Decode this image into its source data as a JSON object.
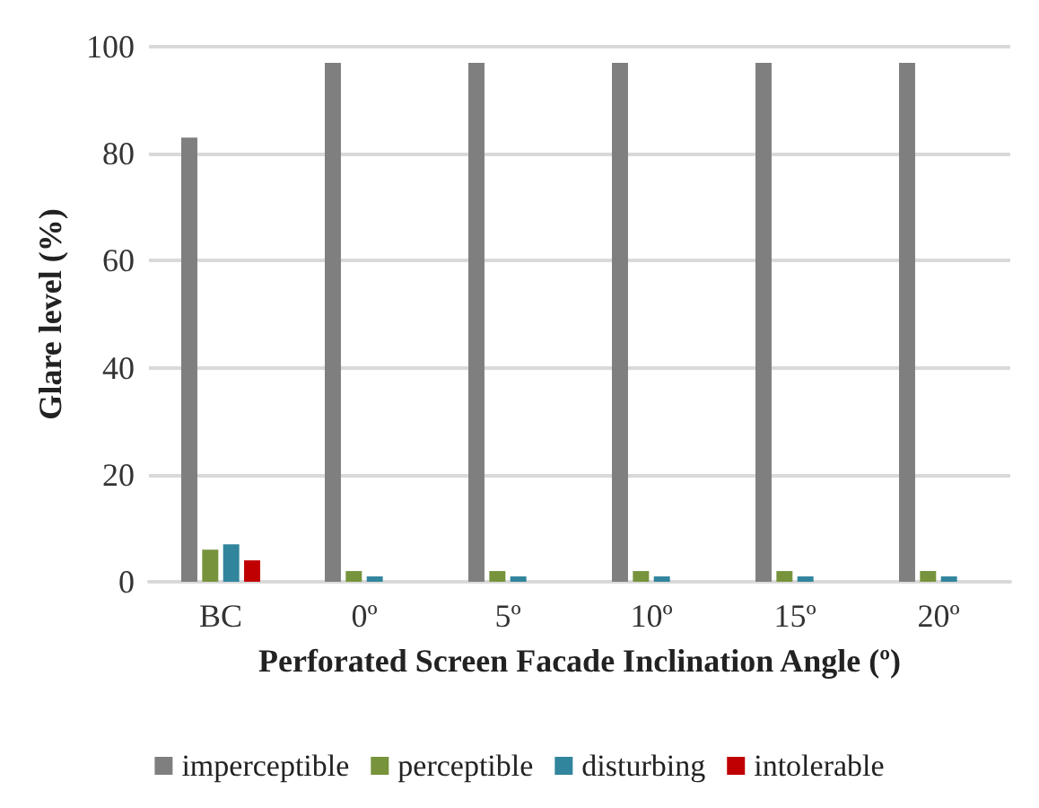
{
  "chart_data": {
    "type": "bar",
    "xlabel": "Perforated Screen Facade Inclination Angle (º)",
    "ylabel": "Glare level (%)",
    "categories": [
      "BC",
      "0º",
      "5º",
      "10º",
      "15º",
      "20º"
    ],
    "series": [
      {
        "name": "imperceptible",
        "color": "#7f7f7f",
        "values": [
          83,
          97,
          97,
          97,
          97,
          97
        ]
      },
      {
        "name": "perceptible",
        "color": "#77933c",
        "values": [
          6,
          2,
          2,
          2,
          2,
          2
        ]
      },
      {
        "name": "disturbing",
        "color": "#31859c",
        "values": [
          7,
          1,
          1,
          1,
          1,
          1
        ]
      },
      {
        "name": "intolerable",
        "color": "#c00000",
        "values": [
          4,
          0,
          0,
          0,
          0,
          0
        ]
      }
    ],
    "ylim": [
      0,
      100
    ],
    "yticks": [
      0,
      20,
      40,
      60,
      80,
      100
    ],
    "grid": "y",
    "legend": "bottom"
  }
}
